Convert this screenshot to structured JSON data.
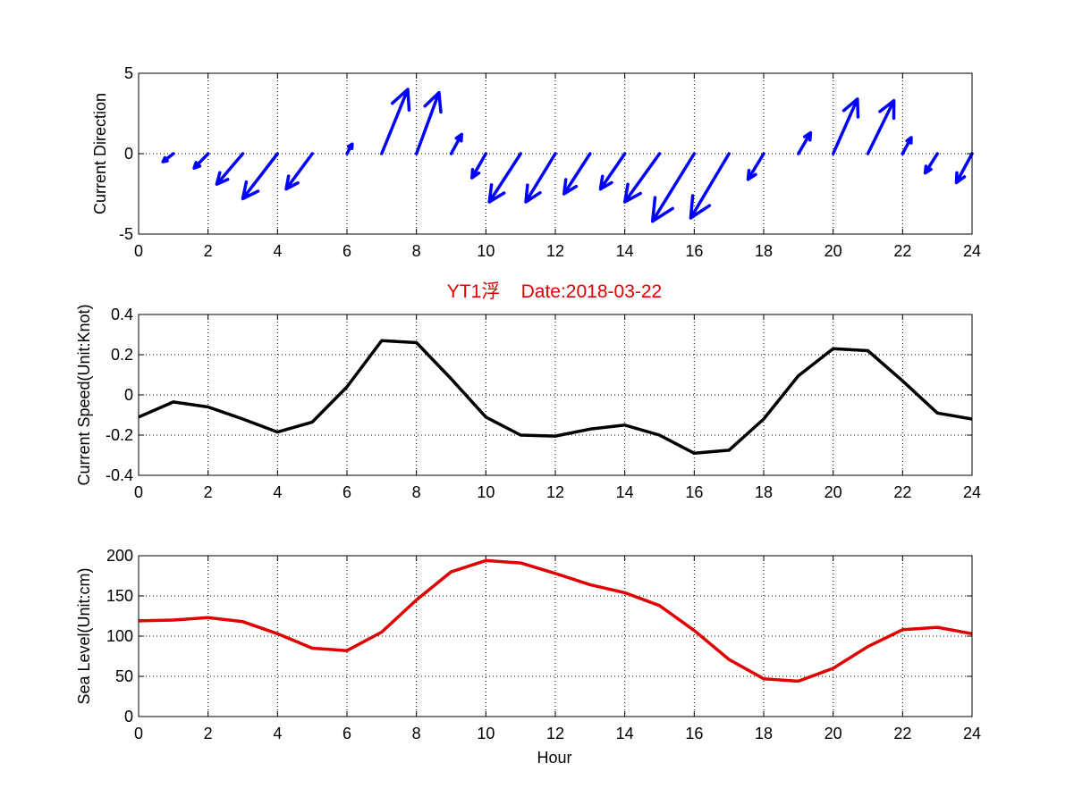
{
  "figure": {
    "title": "YT1浮    Date:2018-03-22",
    "xlabel": "Hour"
  },
  "colors": {
    "direction_arrows": "#0000ff",
    "speed_line": "#000000",
    "sea_level_line": "#e00000",
    "title": "#e00000"
  },
  "chart_data": [
    {
      "type": "quiver",
      "id": "direction",
      "ylabel": "Current Direction",
      "xlim": [
        0,
        24
      ],
      "ylim": [
        -5,
        5
      ],
      "xticks": [
        0,
        2,
        4,
        6,
        8,
        10,
        12,
        14,
        16,
        18,
        20,
        22,
        24
      ],
      "yticks": [
        -5,
        0,
        5
      ],
      "grid": true,
      "arrows": [
        {
          "x": 1,
          "u": -0.3,
          "v": -0.5
        },
        {
          "x": 2,
          "u": -0.4,
          "v": -0.9
        },
        {
          "x": 3,
          "u": -0.75,
          "v": -1.9
        },
        {
          "x": 4,
          "u": -1.0,
          "v": -2.8
        },
        {
          "x": 5,
          "u": -0.75,
          "v": -2.2
        },
        {
          "x": 6,
          "u": 0.15,
          "v": 0.6
        },
        {
          "x": 7,
          "u": 0.75,
          "v": 4.0
        },
        {
          "x": 8,
          "u": 0.65,
          "v": 3.8
        },
        {
          "x": 9,
          "u": 0.3,
          "v": 1.2
        },
        {
          "x": 10,
          "u": -0.4,
          "v": -1.5
        },
        {
          "x": 11,
          "u": -0.9,
          "v": -3.0
        },
        {
          "x": 12,
          "u": -0.85,
          "v": -3.0
        },
        {
          "x": 13,
          "u": -0.75,
          "v": -2.5
        },
        {
          "x": 14,
          "u": -0.7,
          "v": -2.2
        },
        {
          "x": 15,
          "u": -1.0,
          "v": -3.0
        },
        {
          "x": 16,
          "u": -1.2,
          "v": -4.2
        },
        {
          "x": 17,
          "u": -1.1,
          "v": -4.0
        },
        {
          "x": 18,
          "u": -0.45,
          "v": -1.6
        },
        {
          "x": 19,
          "u": 0.35,
          "v": 1.3
        },
        {
          "x": 20,
          "u": 0.7,
          "v": 3.4
        },
        {
          "x": 21,
          "u": 0.75,
          "v": 3.3
        },
        {
          "x": 22,
          "u": 0.25,
          "v": 1.0
        },
        {
          "x": 23,
          "u": -0.35,
          "v": -1.2
        },
        {
          "x": 24,
          "u": -0.45,
          "v": -1.8
        }
      ]
    },
    {
      "type": "line",
      "id": "speed",
      "ylabel": "Current Speed(Unit:Knot)",
      "xlim": [
        0,
        24
      ],
      "ylim": [
        -0.4,
        0.4
      ],
      "xticks": [
        0,
        2,
        4,
        6,
        8,
        10,
        12,
        14,
        16,
        18,
        20,
        22,
        24
      ],
      "yticks": [
        -0.4,
        -0.2,
        0,
        0.2,
        0.4
      ],
      "grid": true,
      "series": [
        {
          "x": [
            0,
            1,
            2,
            3,
            4,
            5,
            6,
            7,
            8,
            9,
            10,
            11,
            12,
            13,
            14,
            15,
            16,
            17,
            18,
            19,
            20,
            21,
            22,
            23,
            24
          ],
          "y": [
            -0.11,
            -0.035,
            -0.06,
            -0.12,
            -0.185,
            -0.135,
            0.04,
            0.27,
            0.26,
            0.08,
            -0.11,
            -0.2,
            -0.205,
            -0.17,
            -0.15,
            -0.2,
            -0.29,
            -0.275,
            -0.12,
            0.095,
            0.23,
            0.22,
            0.07,
            -0.09,
            -0.12
          ]
        }
      ]
    },
    {
      "type": "line",
      "id": "sealevel",
      "ylabel": "Sea Level(Unit:cm)",
      "xlabel": "Hour",
      "xlim": [
        0,
        24
      ],
      "ylim": [
        0,
        200
      ],
      "xticks": [
        0,
        2,
        4,
        6,
        8,
        10,
        12,
        14,
        16,
        18,
        20,
        22,
        24
      ],
      "yticks": [
        0,
        50,
        100,
        150,
        200
      ],
      "grid": true,
      "series": [
        {
          "x": [
            0,
            1,
            2,
            3,
            4,
            5,
            6,
            7,
            8,
            9,
            10,
            11,
            12,
            13,
            14,
            15,
            16,
            17,
            18,
            19,
            20,
            21,
            22,
            23,
            24
          ],
          "y": [
            119,
            120,
            123,
            118,
            103,
            85,
            82,
            105,
            145,
            180,
            194,
            191,
            178,
            164,
            154,
            138,
            107,
            71,
            47,
            44,
            60,
            87,
            108,
            111,
            103
          ]
        }
      ]
    }
  ]
}
